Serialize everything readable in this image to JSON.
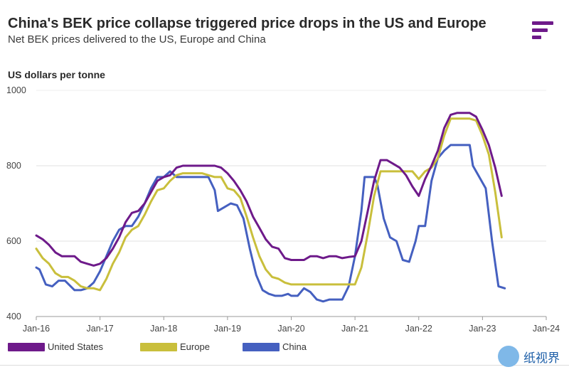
{
  "header": {
    "title": "China's BEK price collapse triggered price drops in the US and Europe",
    "subtitle": "Net BEK prices delivered to the US, Europe and China",
    "ylabel": "US dollars per tonne"
  },
  "watermark": {
    "text": "纸视界"
  },
  "colors": {
    "us": "#6e1a8a",
    "europe": "#c9bf3c",
    "china": "#4560c0"
  },
  "chart_data": {
    "type": "line",
    "title": "China's BEK price collapse triggered price drops in the US and Europe",
    "subtitle": "Net BEK prices delivered to the US, Europe and China",
    "ylabel": "US dollars per tonne",
    "xlabel": "",
    "ylim": [
      400,
      1000
    ],
    "xlim": [
      2016.0,
      2024.0
    ],
    "yticks": [
      400,
      600,
      800,
      1000
    ],
    "xticks": [
      {
        "value": 2016.0,
        "label": "Jan-16"
      },
      {
        "value": 2017.0,
        "label": "Jan-17"
      },
      {
        "value": 2018.0,
        "label": "Jan-18"
      },
      {
        "value": 2019.0,
        "label": "Jan-19"
      },
      {
        "value": 2020.0,
        "label": "Jan-20"
      },
      {
        "value": 2021.0,
        "label": "Jan-21"
      },
      {
        "value": 2022.0,
        "label": "Jan-22"
      },
      {
        "value": 2023.0,
        "label": "Jan-23"
      },
      {
        "value": 2024.0,
        "label": "Jan-24"
      }
    ],
    "grid": true,
    "legend_position": "bottom",
    "series": [
      {
        "name": "United States",
        "color": "#6e1a8a",
        "points": [
          [
            2016.0,
            615
          ],
          [
            2016.1,
            605
          ],
          [
            2016.2,
            590
          ],
          [
            2016.3,
            570
          ],
          [
            2016.4,
            560
          ],
          [
            2016.5,
            560
          ],
          [
            2016.6,
            560
          ],
          [
            2016.7,
            545
          ],
          [
            2016.8,
            540
          ],
          [
            2016.9,
            535
          ],
          [
            2017.0,
            540
          ],
          [
            2017.1,
            555
          ],
          [
            2017.2,
            580
          ],
          [
            2017.3,
            610
          ],
          [
            2017.4,
            650
          ],
          [
            2017.5,
            675
          ],
          [
            2017.6,
            680
          ],
          [
            2017.7,
            700
          ],
          [
            2017.8,
            730
          ],
          [
            2017.9,
            760
          ],
          [
            2018.0,
            770
          ],
          [
            2018.1,
            775
          ],
          [
            2018.2,
            795
          ],
          [
            2018.3,
            800
          ],
          [
            2018.4,
            800
          ],
          [
            2018.5,
            800
          ],
          [
            2018.6,
            800
          ],
          [
            2018.7,
            800
          ],
          [
            2018.8,
            800
          ],
          [
            2018.9,
            795
          ],
          [
            2019.0,
            780
          ],
          [
            2019.1,
            760
          ],
          [
            2019.2,
            735
          ],
          [
            2019.3,
            705
          ],
          [
            2019.4,
            665
          ],
          [
            2019.5,
            635
          ],
          [
            2019.6,
            605
          ],
          [
            2019.7,
            585
          ],
          [
            2019.8,
            580
          ],
          [
            2019.9,
            555
          ],
          [
            2020.0,
            550
          ],
          [
            2020.1,
            550
          ],
          [
            2020.2,
            550
          ],
          [
            2020.3,
            560
          ],
          [
            2020.4,
            560
          ],
          [
            2020.5,
            555
          ],
          [
            2020.6,
            560
          ],
          [
            2020.7,
            560
          ],
          [
            2020.8,
            555
          ],
          [
            2020.9,
            558
          ],
          [
            2021.0,
            560
          ],
          [
            2021.1,
            600
          ],
          [
            2021.2,
            680
          ],
          [
            2021.3,
            760
          ],
          [
            2021.4,
            815
          ],
          [
            2021.5,
            815
          ],
          [
            2021.6,
            805
          ],
          [
            2021.7,
            795
          ],
          [
            2021.8,
            775
          ],
          [
            2021.9,
            745
          ],
          [
            2022.0,
            720
          ],
          [
            2022.1,
            765
          ],
          [
            2022.2,
            800
          ],
          [
            2022.3,
            840
          ],
          [
            2022.4,
            900
          ],
          [
            2022.5,
            935
          ],
          [
            2022.6,
            940
          ],
          [
            2022.7,
            940
          ],
          [
            2022.8,
            940
          ],
          [
            2022.9,
            930
          ],
          [
            2023.0,
            895
          ],
          [
            2023.1,
            855
          ],
          [
            2023.2,
            795
          ],
          [
            2023.3,
            720
          ]
        ]
      },
      {
        "name": "Europe",
        "color": "#c9bf3c",
        "points": [
          [
            2016.0,
            580
          ],
          [
            2016.1,
            555
          ],
          [
            2016.2,
            540
          ],
          [
            2016.3,
            515
          ],
          [
            2016.4,
            505
          ],
          [
            2016.5,
            505
          ],
          [
            2016.6,
            495
          ],
          [
            2016.7,
            480
          ],
          [
            2016.8,
            475
          ],
          [
            2016.9,
            475
          ],
          [
            2017.0,
            470
          ],
          [
            2017.1,
            500
          ],
          [
            2017.2,
            540
          ],
          [
            2017.3,
            570
          ],
          [
            2017.4,
            610
          ],
          [
            2017.5,
            630
          ],
          [
            2017.6,
            640
          ],
          [
            2017.7,
            670
          ],
          [
            2017.8,
            705
          ],
          [
            2017.9,
            735
          ],
          [
            2018.0,
            740
          ],
          [
            2018.1,
            760
          ],
          [
            2018.2,
            775
          ],
          [
            2018.3,
            780
          ],
          [
            2018.4,
            780
          ],
          [
            2018.5,
            780
          ],
          [
            2018.6,
            780
          ],
          [
            2018.7,
            775
          ],
          [
            2018.8,
            770
          ],
          [
            2018.9,
            770
          ],
          [
            2019.0,
            740
          ],
          [
            2019.1,
            735
          ],
          [
            2019.2,
            715
          ],
          [
            2019.3,
            665
          ],
          [
            2019.4,
            610
          ],
          [
            2019.5,
            560
          ],
          [
            2019.6,
            525
          ],
          [
            2019.7,
            505
          ],
          [
            2019.8,
            500
          ],
          [
            2019.9,
            490
          ],
          [
            2020.0,
            485
          ],
          [
            2020.5,
            485
          ],
          [
            2020.9,
            485
          ],
          [
            2021.0,
            485
          ],
          [
            2021.1,
            530
          ],
          [
            2021.2,
            620
          ],
          [
            2021.3,
            720
          ],
          [
            2021.4,
            785
          ],
          [
            2021.5,
            785
          ],
          [
            2021.6,
            785
          ],
          [
            2021.7,
            785
          ],
          [
            2021.8,
            785
          ],
          [
            2021.9,
            785
          ],
          [
            2022.0,
            765
          ],
          [
            2022.1,
            785
          ],
          [
            2022.2,
            795
          ],
          [
            2022.3,
            820
          ],
          [
            2022.4,
            880
          ],
          [
            2022.5,
            925
          ],
          [
            2022.6,
            925
          ],
          [
            2022.7,
            925
          ],
          [
            2022.8,
            925
          ],
          [
            2022.9,
            920
          ],
          [
            2023.0,
            880
          ],
          [
            2023.1,
            830
          ],
          [
            2023.2,
            730
          ],
          [
            2023.3,
            610
          ]
        ]
      },
      {
        "name": "China",
        "color": "#4560c0",
        "points": [
          [
            2016.0,
            530
          ],
          [
            2016.05,
            525
          ],
          [
            2016.15,
            485
          ],
          [
            2016.25,
            480
          ],
          [
            2016.35,
            495
          ],
          [
            2016.45,
            495
          ],
          [
            2016.6,
            470
          ],
          [
            2016.7,
            470
          ],
          [
            2016.8,
            475
          ],
          [
            2016.9,
            490
          ],
          [
            2017.0,
            520
          ],
          [
            2017.1,
            560
          ],
          [
            2017.2,
            600
          ],
          [
            2017.3,
            630
          ],
          [
            2017.4,
            640
          ],
          [
            2017.5,
            640
          ],
          [
            2017.6,
            665
          ],
          [
            2017.7,
            700
          ],
          [
            2017.8,
            740
          ],
          [
            2017.9,
            770
          ],
          [
            2018.0,
            770
          ],
          [
            2018.1,
            785
          ],
          [
            2018.2,
            770
          ],
          [
            2018.3,
            770
          ],
          [
            2018.4,
            770
          ],
          [
            2018.5,
            770
          ],
          [
            2018.6,
            770
          ],
          [
            2018.7,
            770
          ],
          [
            2018.8,
            735
          ],
          [
            2018.85,
            680
          ],
          [
            2018.95,
            690
          ],
          [
            2019.05,
            700
          ],
          [
            2019.15,
            695
          ],
          [
            2019.25,
            660
          ],
          [
            2019.35,
            580
          ],
          [
            2019.45,
            510
          ],
          [
            2019.55,
            470
          ],
          [
            2019.65,
            460
          ],
          [
            2019.75,
            455
          ],
          [
            2019.85,
            455
          ],
          [
            2019.95,
            460
          ],
          [
            2020.0,
            455
          ],
          [
            2020.1,
            455
          ],
          [
            2020.2,
            475
          ],
          [
            2020.3,
            465
          ],
          [
            2020.4,
            445
          ],
          [
            2020.5,
            440
          ],
          [
            2020.6,
            445
          ],
          [
            2020.7,
            445
          ],
          [
            2020.8,
            445
          ],
          [
            2020.9,
            480
          ],
          [
            2021.0,
            560
          ],
          [
            2021.1,
            680
          ],
          [
            2021.15,
            770
          ],
          [
            2021.3,
            770
          ],
          [
            2021.35,
            750
          ],
          [
            2021.45,
            660
          ],
          [
            2021.55,
            610
          ],
          [
            2021.65,
            600
          ],
          [
            2021.75,
            550
          ],
          [
            2021.85,
            545
          ],
          [
            2021.95,
            600
          ],
          [
            2022.0,
            640
          ],
          [
            2022.1,
            640
          ],
          [
            2022.2,
            760
          ],
          [
            2022.3,
            820
          ],
          [
            2022.4,
            840
          ],
          [
            2022.5,
            855
          ],
          [
            2022.6,
            855
          ],
          [
            2022.7,
            855
          ],
          [
            2022.8,
            855
          ],
          [
            2022.85,
            800
          ],
          [
            2022.95,
            770
          ],
          [
            2023.05,
            740
          ],
          [
            2023.15,
            600
          ],
          [
            2023.25,
            480
          ],
          [
            2023.35,
            475
          ]
        ]
      }
    ]
  },
  "legend": {
    "items": [
      {
        "label": "United States",
        "color": "#6e1a8a"
      },
      {
        "label": "Europe",
        "color": "#c9bf3c"
      },
      {
        "label": "China",
        "color": "#4560c0"
      }
    ]
  }
}
